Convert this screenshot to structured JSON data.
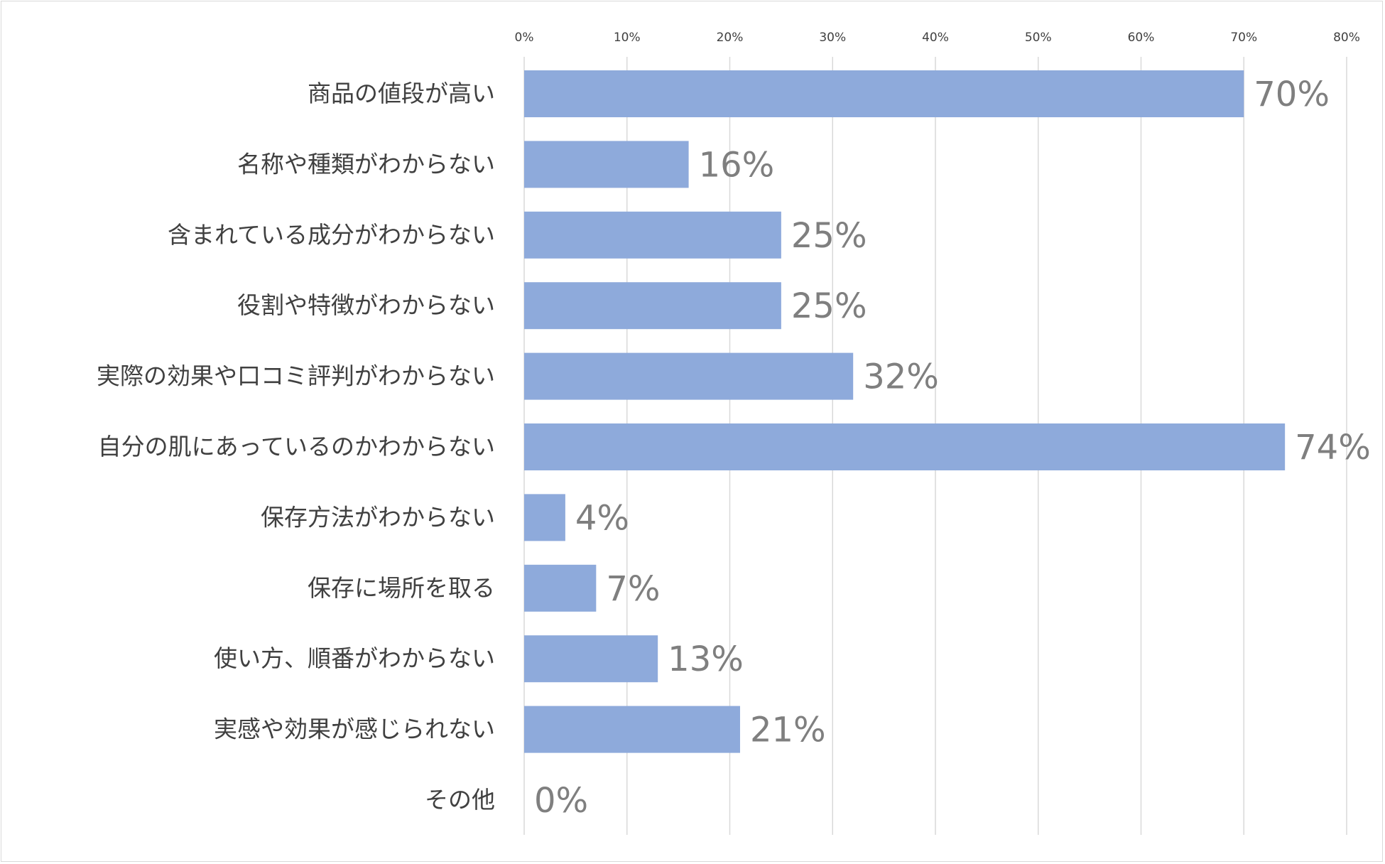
{
  "chart_data": {
    "type": "bar",
    "orientation": "horizontal",
    "categories": [
      "商品の値段が高い",
      "名称や種類がわからない",
      "含まれている成分がわからない",
      "役割や特徴がわからない",
      "実際の効果や口コミ評判がわからない",
      "自分の肌にあっているのかわからない",
      "保存方法がわからない",
      "保存に場所を取る",
      "使い方、順番がわからない",
      "実感や効果が感じられない",
      "その他"
    ],
    "values": [
      70,
      16,
      25,
      25,
      32,
      74,
      4,
      7,
      13,
      21,
      0
    ],
    "data_labels": [
      "70%",
      "16%",
      "25%",
      "25%",
      "32%",
      "74%",
      "4%",
      "7%",
      "13%",
      "21%",
      "0%"
    ],
    "xlim": [
      0,
      80
    ],
    "x_ticks": [
      "0%",
      "10%",
      "20%",
      "30%",
      "40%",
      "50%",
      "60%",
      "70%",
      "80%"
    ],
    "x_axis_position": "top",
    "grid": true,
    "bar_color": "#8eaadb",
    "gridline_color": "#d9d9d9",
    "label_color": "#7f7f7f",
    "category_color": "#404040",
    "title": "",
    "xlabel": "",
    "ylabel": ""
  }
}
